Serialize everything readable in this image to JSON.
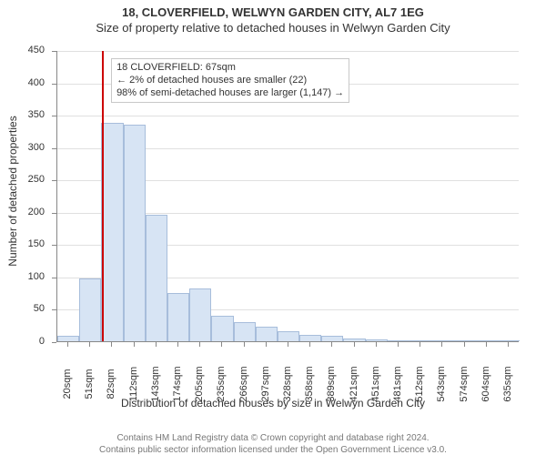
{
  "titles": {
    "main": "18, CLOVERFIELD, WELWYN GARDEN CITY, AL7 1EG",
    "sub": "Size of property relative to detached houses in Welwyn Garden City"
  },
  "annotation": {
    "line1": "18 CLOVERFIELD: 67sqm",
    "line2": "← 2% of detached houses are smaller (22)",
    "line3": "98% of semi-detached houses are larger (1,147) →",
    "box_border_color": "#c8c8c8",
    "box_bg": "#ffffff",
    "font_size": 11
  },
  "yaxis": {
    "label": "Number of detached properties",
    "min": 0,
    "max": 450,
    "ticks": [
      0,
      50,
      100,
      150,
      200,
      250,
      300,
      350,
      400,
      450
    ],
    "label_fontsize": 12,
    "tick_fontsize": 11
  },
  "xaxis": {
    "label": "Distribution of detached houses by size in Welwyn Garden City",
    "ticks": [
      "20sqm",
      "51sqm",
      "82sqm",
      "112sqm",
      "143sqm",
      "174sqm",
      "205sqm",
      "235sqm",
      "266sqm",
      "297sqm",
      "328sqm",
      "358sqm",
      "389sqm",
      "421sqm",
      "451sqm",
      "481sqm",
      "512sqm",
      "543sqm",
      "574sqm",
      "604sqm",
      "635sqm"
    ],
    "label_fontsize": 12,
    "tick_fontsize": 11
  },
  "bars": {
    "values": [
      8,
      97,
      338,
      335,
      195,
      75,
      82,
      40,
      30,
      22,
      15,
      10,
      8,
      4,
      3,
      2,
      2,
      1,
      1,
      1,
      1
    ],
    "bar_color": "#d7e4f4",
    "bar_border": "#a7bddb",
    "bar_width_ratio": 1.0
  },
  "marker": {
    "x_value": 67,
    "line_color": "#cc0000",
    "line_width": 2
  },
  "grid": {
    "color": "#e0e0e0"
  },
  "plot": {
    "bg": "#ffffff"
  },
  "footer": {
    "line1": "Contains HM Land Registry data © Crown copyright and database right 2024.",
    "line2": "Contains public sector information licensed under the Open Government Licence v3.0."
  }
}
